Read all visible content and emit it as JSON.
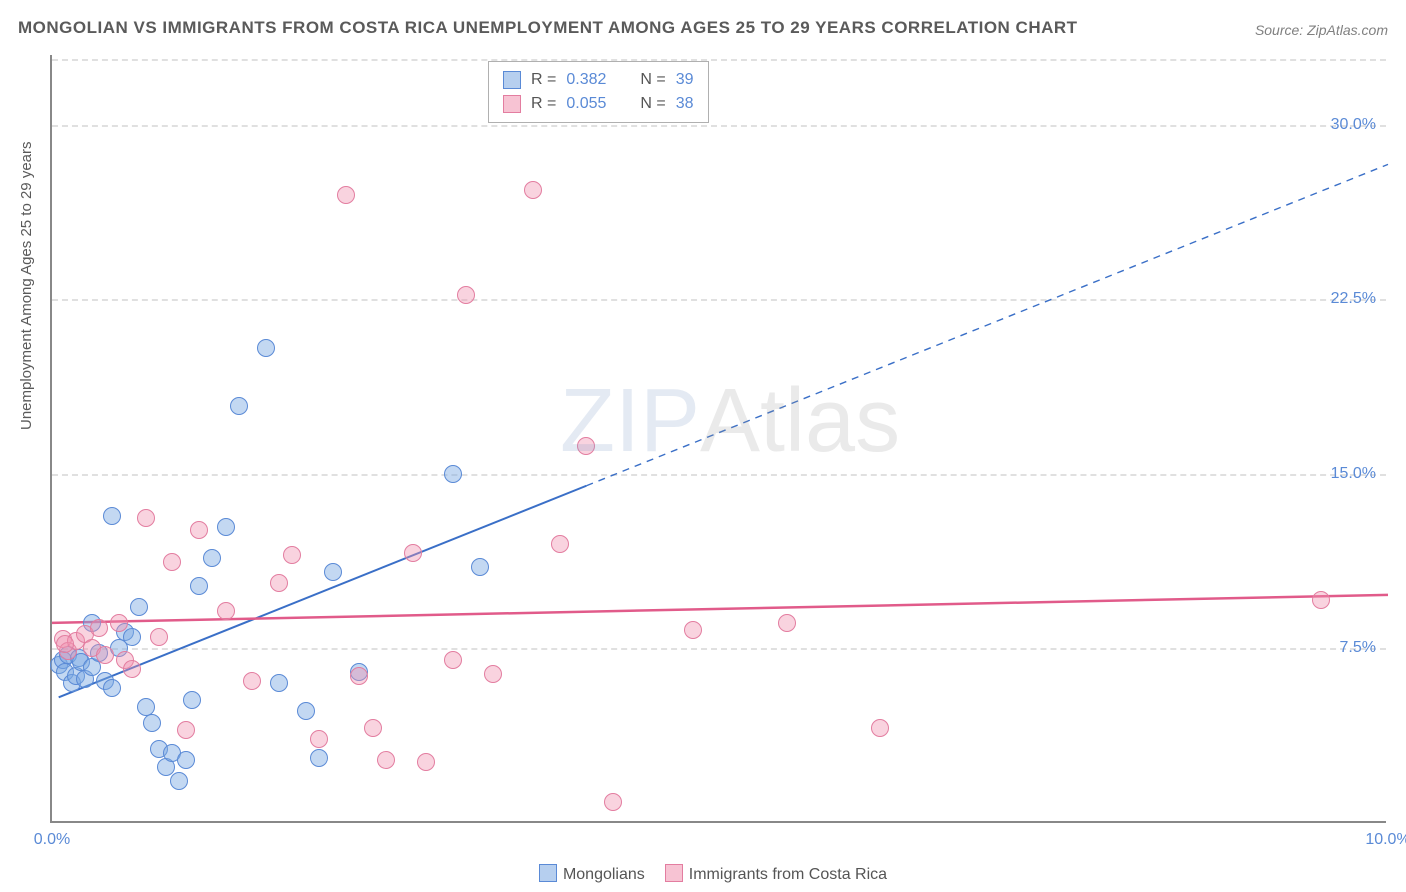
{
  "title": "MONGOLIAN VS IMMIGRANTS FROM COSTA RICA UNEMPLOYMENT AMONG AGES 25 TO 29 YEARS CORRELATION CHART",
  "source": "Source: ZipAtlas.com",
  "y_axis_label": "Unemployment Among Ages 25 to 29 years",
  "watermark_bold": "ZIP",
  "watermark_thin": "Atlas",
  "chart": {
    "type": "scatter",
    "xlim": [
      0,
      10
    ],
    "ylim": [
      0,
      33
    ],
    "x_ticks": [
      {
        "v": 0,
        "label": "0.0%"
      },
      {
        "v": 10,
        "label": "10.0%"
      }
    ],
    "y_ticks": [
      {
        "v": 7.5,
        "label": "7.5%"
      },
      {
        "v": 15.0,
        "label": "15.0%"
      },
      {
        "v": 22.5,
        "label": "22.5%"
      },
      {
        "v": 30.0,
        "label": "30.0%"
      }
    ],
    "grid_color": "#e0e0e0",
    "background_color": "#ffffff",
    "axis_color": "#888888",
    "tick_label_color": "#5a8ad6",
    "series": [
      {
        "name": "Mongolians",
        "color_fill": "rgba(122,168,226,0.45)",
        "color_stroke": "#5a8ad6",
        "marker_size": 18,
        "R": "0.382",
        "N": "39",
        "trend": {
          "x1": 0.05,
          "y1": 5.4,
          "x2": 10.0,
          "y2": 28.3,
          "solid_until_x": 4.0,
          "stroke": "#3a6fc7",
          "width": 2
        },
        "points": [
          [
            0.05,
            6.8
          ],
          [
            0.08,
            7.0
          ],
          [
            0.1,
            6.5
          ],
          [
            0.12,
            7.2
          ],
          [
            0.15,
            6.0
          ],
          [
            0.18,
            6.3
          ],
          [
            0.2,
            7.1
          ],
          [
            0.22,
            6.9
          ],
          [
            0.25,
            6.2
          ],
          [
            0.3,
            6.7
          ],
          [
            0.35,
            7.3
          ],
          [
            0.4,
            6.1
          ],
          [
            0.45,
            5.8
          ],
          [
            0.5,
            7.5
          ],
          [
            0.55,
            8.2
          ],
          [
            0.6,
            8.0
          ],
          [
            0.65,
            9.3
          ],
          [
            0.3,
            8.6
          ],
          [
            0.7,
            5.0
          ],
          [
            0.75,
            4.3
          ],
          [
            0.8,
            3.2
          ],
          [
            0.85,
            2.4
          ],
          [
            0.9,
            3.0
          ],
          [
            0.95,
            1.8
          ],
          [
            1.0,
            2.7
          ],
          [
            1.05,
            5.3
          ],
          [
            1.1,
            10.2
          ],
          [
            1.2,
            11.4
          ],
          [
            0.45,
            13.2
          ],
          [
            1.3,
            12.7
          ],
          [
            1.4,
            17.9
          ],
          [
            1.6,
            20.4
          ],
          [
            1.7,
            6.0
          ],
          [
            1.9,
            4.8
          ],
          [
            2.0,
            2.8
          ],
          [
            2.1,
            10.8
          ],
          [
            2.3,
            6.5
          ],
          [
            3.0,
            15.0
          ],
          [
            3.2,
            11.0
          ]
        ]
      },
      {
        "name": "Immigrants from Costa Rica",
        "color_fill": "rgba(240,145,175,0.40)",
        "color_stroke": "#e37da0",
        "marker_size": 18,
        "R": "0.055",
        "N": "38",
        "trend": {
          "x1": 0.0,
          "y1": 8.6,
          "x2": 10.0,
          "y2": 9.8,
          "solid_until_x": 10.0,
          "stroke": "#e15b8a",
          "width": 2.5
        },
        "points": [
          [
            0.08,
            7.9
          ],
          [
            0.12,
            7.4
          ],
          [
            0.18,
            7.8
          ],
          [
            0.25,
            8.1
          ],
          [
            0.3,
            7.5
          ],
          [
            0.35,
            8.4
          ],
          [
            0.1,
            7.7
          ],
          [
            0.4,
            7.2
          ],
          [
            0.5,
            8.6
          ],
          [
            0.55,
            7.0
          ],
          [
            0.6,
            6.6
          ],
          [
            0.7,
            13.1
          ],
          [
            0.8,
            8.0
          ],
          [
            0.9,
            11.2
          ],
          [
            1.0,
            4.0
          ],
          [
            1.1,
            12.6
          ],
          [
            1.3,
            9.1
          ],
          [
            1.5,
            6.1
          ],
          [
            1.7,
            10.3
          ],
          [
            1.8,
            11.5
          ],
          [
            2.0,
            3.6
          ],
          [
            2.2,
            27.0
          ],
          [
            2.3,
            6.3
          ],
          [
            2.4,
            4.1
          ],
          [
            2.5,
            2.7
          ],
          [
            2.7,
            11.6
          ],
          [
            2.8,
            2.6
          ],
          [
            3.0,
            7.0
          ],
          [
            3.1,
            22.7
          ],
          [
            3.3,
            6.4
          ],
          [
            3.6,
            27.2
          ],
          [
            3.8,
            12.0
          ],
          [
            4.0,
            16.2
          ],
          [
            4.2,
            0.9
          ],
          [
            4.8,
            8.3
          ],
          [
            5.5,
            8.6
          ],
          [
            6.2,
            4.1
          ],
          [
            9.5,
            9.6
          ]
        ]
      }
    ]
  },
  "legend_bottom": [
    {
      "swatch": "blue",
      "label": "Mongolians"
    },
    {
      "swatch": "pink",
      "label": "Immigrants from Costa Rica"
    }
  ],
  "stats_box": {
    "rows": [
      {
        "swatch": "blue",
        "R_label": "R =",
        "R_val": "0.382",
        "N_label": "N =",
        "N_val": "39"
      },
      {
        "swatch": "pink",
        "R_label": "R =",
        "R_val": "0.055",
        "N_label": "N =",
        "N_val": "38"
      }
    ]
  }
}
